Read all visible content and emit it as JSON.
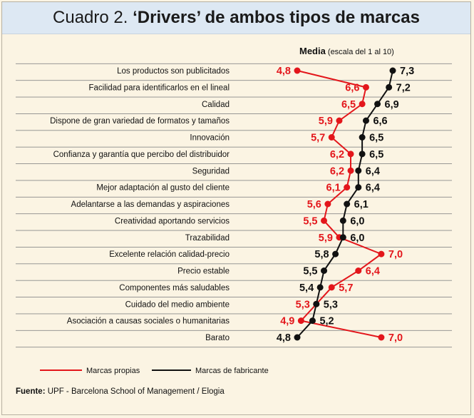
{
  "title": {
    "lead": "Cuadro 2.",
    "rest": "‘Drivers’ de ambos tipos de marcas"
  },
  "source": {
    "label": "Fuente:",
    "text": "UPF - Barcelona School of Management / Elogia"
  },
  "colors": {
    "propias": "#e3161b",
    "fabricante": "#111111",
    "grid": "#8a8a8a",
    "background": "#fbf4e3",
    "title_bg": "#dde8f3"
  },
  "chart_data": {
    "type": "line",
    "orientation": "horizontal",
    "title": "Cuadro 2. ‘Drivers’ de ambos tipos de marcas",
    "axis_title": "Media",
    "axis_subtitle": "(escala del 1 al 10)",
    "xlim": [
      4.8,
      7.3
    ],
    "grid": true,
    "legend_position": "bottom-left",
    "categories": [
      "Los productos son publicitados",
      "Facilidad para identificarlos en el lineal",
      "Calidad",
      "Dispone de gran variedad de formatos y tamaños",
      "Innovación",
      "Confianza y garantía que percibo del distribuidor",
      "Seguridad",
      "Mejor adaptación al gusto del cliente",
      "Adelantarse a las demandas y aspiraciones",
      "Creatividad aportando servicios",
      "Trazabilidad",
      "Excelente relación calidad-precio",
      "Precio estable",
      "Componentes más saludables",
      "Cuidado del medio ambiente",
      "Asociación a causas sociales o humanitarias",
      "Barato"
    ],
    "series": [
      {
        "name": "Marcas propias",
        "values": [
          4.8,
          6.6,
          6.5,
          5.9,
          5.7,
          6.2,
          6.2,
          6.1,
          5.6,
          5.5,
          5.9,
          7.0,
          6.4,
          5.7,
          5.3,
          4.9,
          7.0
        ],
        "labels": [
          "4,8",
          "6,6",
          "6,5",
          "5,9",
          "5,7",
          "6,2",
          "6,2",
          "6,1",
          "5,6",
          "5,5",
          "5,9",
          "7,0",
          "6,4",
          "5,7",
          "5,3",
          "4,9",
          "7,0"
        ],
        "label_side": [
          "left",
          "left",
          "left",
          "left",
          "left",
          "left",
          "left",
          "left",
          "left",
          "left",
          "left",
          "right",
          "right",
          "right",
          "left",
          "left",
          "right"
        ]
      },
      {
        "name": "Marcas de fabricante",
        "values": [
          7.3,
          7.2,
          6.9,
          6.6,
          6.5,
          6.5,
          6.4,
          6.4,
          6.1,
          6.0,
          6.0,
          5.8,
          5.5,
          5.4,
          5.3,
          5.2,
          4.8
        ],
        "labels": [
          "7,3",
          "7,2",
          "6,9",
          "6,6",
          "6,5",
          "6,5",
          "6,4",
          "6,4",
          "6,1",
          "6,0",
          "6,0",
          "5,8",
          "5,5",
          "5,4",
          "5,3",
          "5,2",
          "4,8"
        ],
        "label_side": [
          "right",
          "right",
          "right",
          "right",
          "right",
          "right",
          "right",
          "right",
          "right",
          "right",
          "right",
          "left",
          "left",
          "left",
          "right",
          "right",
          "left"
        ]
      }
    ]
  }
}
